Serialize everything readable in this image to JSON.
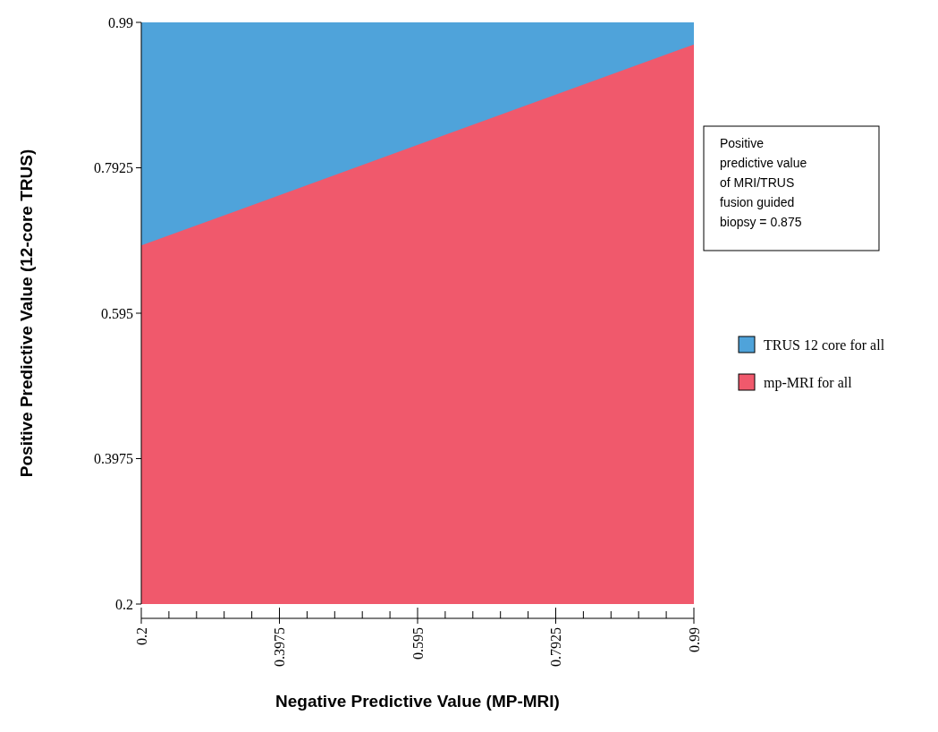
{
  "chart_data": {
    "type": "area",
    "xlabel": "Negative Predictive Value (MP-MRI)",
    "ylabel": "Positive Predictive Value (12-core TRUS)",
    "x": [
      0.2,
      0.99
    ],
    "series": [
      {
        "name": "TRUS 12 core for all",
        "color": "#4fa3da",
        "values": [
          0.99,
          0.99
        ]
      },
      {
        "name": "mp-MRI for all",
        "color": "#f0596c",
        "values": [
          0.687,
          0.96
        ]
      }
    ],
    "xlim": [
      0.2,
      0.99
    ],
    "ylim": [
      0.2,
      0.99
    ],
    "xticks": [
      0.2,
      {
        "value": 0.2395,
        "label": null
      },
      {
        "value": 0.279,
        "label": null
      },
      {
        "value": 0.3185,
        "label": null
      },
      {
        "value": 0.358,
        "label": null
      },
      0.3975,
      {
        "value": 0.437,
        "label": null
      },
      {
        "value": 0.4765,
        "label": null
      },
      {
        "value": 0.516,
        "label": null
      },
      {
        "value": 0.5555,
        "label": null
      },
      0.595,
      {
        "value": 0.6345,
        "label": null
      },
      {
        "value": 0.674,
        "label": null
      },
      {
        "value": 0.7135,
        "label": null
      },
      {
        "value": 0.753,
        "label": null
      },
      0.7925,
      {
        "value": 0.832,
        "label": null
      },
      {
        "value": 0.8715,
        "label": null
      },
      {
        "value": 0.911,
        "label": null
      },
      {
        "value": 0.9505,
        "label": null
      },
      0.99
    ],
    "yticks": [
      0.2,
      0.3975,
      0.595,
      0.7925,
      0.99
    ],
    "legend": "right",
    "grid": false,
    "annotations": [
      "Positive predictive value of MRI/TRUS fusion guided biopsy = 0.875"
    ]
  }
}
